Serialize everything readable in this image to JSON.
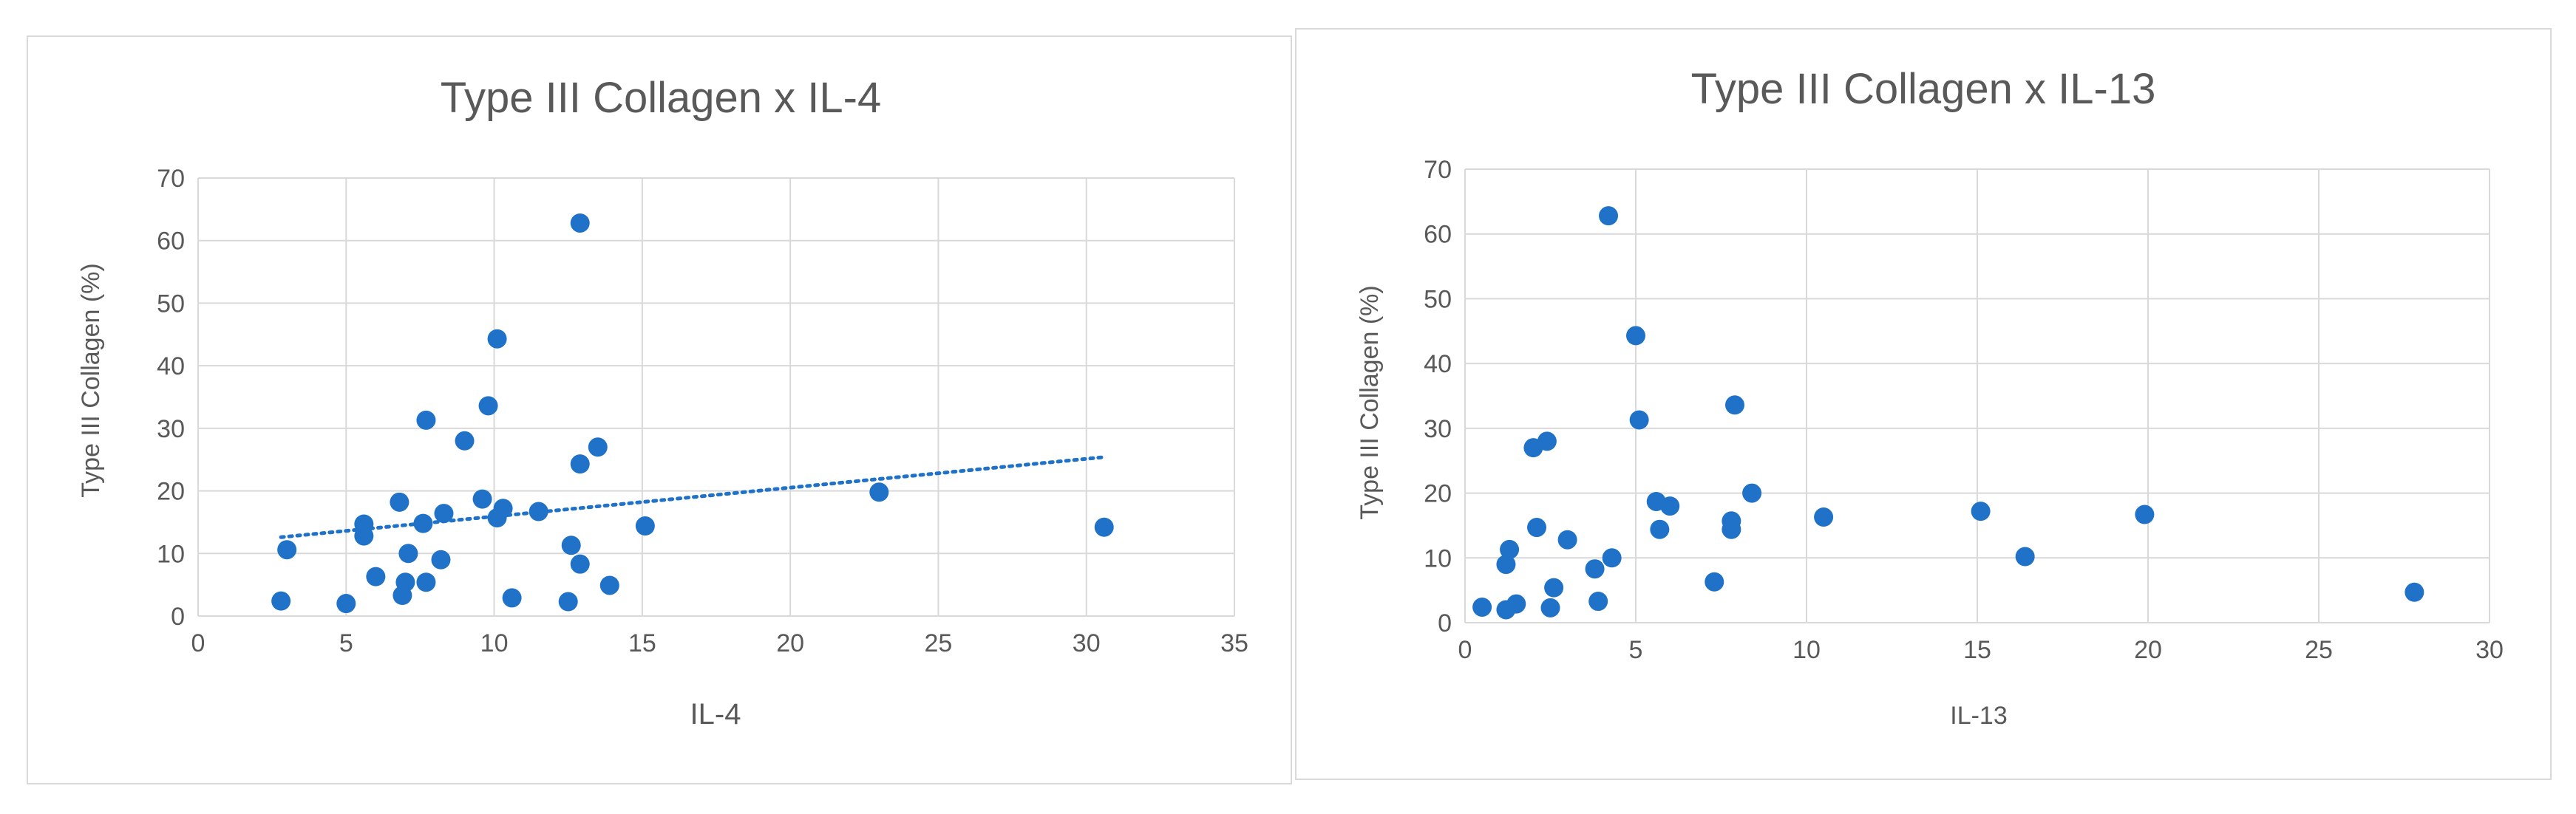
{
  "chart_data": [
    {
      "type": "scatter",
      "title": "Type III Collagen x IL-4",
      "xlabel": "IL-4",
      "ylabel": "Type III Collagen (%)",
      "xlim": [
        0,
        35
      ],
      "ylim": [
        0,
        70
      ],
      "xticks": [
        "0",
        "5",
        "10",
        "15",
        "20",
        "25",
        "30",
        "35"
      ],
      "yticks": [
        "0",
        "10",
        "20",
        "30",
        "40",
        "50",
        "60",
        "70"
      ],
      "grid": true,
      "legend": "none",
      "color": "#1f72c8",
      "trendline": {
        "style": "dotted",
        "x": [
          2.8,
          30.6
        ],
        "y": [
          12.6,
          25.4
        ]
      },
      "points": [
        {
          "x": 2.8,
          "y": 2.4
        },
        {
          "x": 3.0,
          "y": 10.6
        },
        {
          "x": 5.0,
          "y": 2.0
        },
        {
          "x": 5.6,
          "y": 14.7
        },
        {
          "x": 5.6,
          "y": 12.8
        },
        {
          "x": 6.0,
          "y": 6.3
        },
        {
          "x": 6.8,
          "y": 18.2
        },
        {
          "x": 6.9,
          "y": 3.3
        },
        {
          "x": 7.0,
          "y": 5.4
        },
        {
          "x": 7.1,
          "y": 10.0
        },
        {
          "x": 7.6,
          "y": 14.8
        },
        {
          "x": 7.7,
          "y": 5.4
        },
        {
          "x": 7.7,
          "y": 31.3
        },
        {
          "x": 8.2,
          "y": 9.0
        },
        {
          "x": 8.3,
          "y": 16.4
        },
        {
          "x": 9.0,
          "y": 28.0
        },
        {
          "x": 9.6,
          "y": 18.7
        },
        {
          "x": 9.8,
          "y": 33.6
        },
        {
          "x": 10.1,
          "y": 15.7
        },
        {
          "x": 10.1,
          "y": 44.3
        },
        {
          "x": 10.3,
          "y": 17.2
        },
        {
          "x": 10.6,
          "y": 2.9
        },
        {
          "x": 11.5,
          "y": 16.7
        },
        {
          "x": 12.5,
          "y": 2.3
        },
        {
          "x": 12.6,
          "y": 11.3
        },
        {
          "x": 12.9,
          "y": 8.3
        },
        {
          "x": 12.9,
          "y": 24.3
        },
        {
          "x": 12.9,
          "y": 62.8
        },
        {
          "x": 13.5,
          "y": 27.0
        },
        {
          "x": 13.9,
          "y": 4.9
        },
        {
          "x": 15.1,
          "y": 14.4
        },
        {
          "x": 23.0,
          "y": 19.8
        },
        {
          "x": 30.6,
          "y": 14.2
        }
      ]
    },
    {
      "type": "scatter",
      "title": "Type III Collagen x IL-13",
      "xlabel": "IL-13",
      "ylabel": "Type III Collagen (%)",
      "xlim": [
        0,
        30
      ],
      "ylim": [
        0,
        70
      ],
      "xticks": [
        "0",
        "5",
        "10",
        "15",
        "20",
        "25",
        "30"
      ],
      "yticks": [
        "0",
        "10",
        "20",
        "30",
        "40",
        "50",
        "60",
        "70"
      ],
      "grid": true,
      "legend": "none",
      "color": "#1f72c8",
      "points": [
        {
          "x": 0.5,
          "y": 2.4
        },
        {
          "x": 1.2,
          "y": 2.0
        },
        {
          "x": 1.2,
          "y": 9.0
        },
        {
          "x": 1.3,
          "y": 11.3
        },
        {
          "x": 1.5,
          "y": 2.9
        },
        {
          "x": 2.0,
          "y": 27.0
        },
        {
          "x": 2.1,
          "y": 14.7
        },
        {
          "x": 2.4,
          "y": 28.0
        },
        {
          "x": 2.5,
          "y": 2.3
        },
        {
          "x": 2.6,
          "y": 5.4
        },
        {
          "x": 3.0,
          "y": 12.8
        },
        {
          "x": 3.8,
          "y": 8.3
        },
        {
          "x": 3.9,
          "y": 3.3
        },
        {
          "x": 4.2,
          "y": 62.8
        },
        {
          "x": 4.3,
          "y": 10.0
        },
        {
          "x": 5.0,
          "y": 44.3
        },
        {
          "x": 5.1,
          "y": 31.3
        },
        {
          "x": 5.6,
          "y": 18.7
        },
        {
          "x": 5.7,
          "y": 14.4
        },
        {
          "x": 6.0,
          "y": 18.0
        },
        {
          "x": 7.3,
          "y": 6.3
        },
        {
          "x": 7.8,
          "y": 15.7
        },
        {
          "x": 7.8,
          "y": 14.4
        },
        {
          "x": 7.9,
          "y": 33.6
        },
        {
          "x": 8.4,
          "y": 20.0
        },
        {
          "x": 10.5,
          "y": 16.3
        },
        {
          "x": 15.1,
          "y": 17.2
        },
        {
          "x": 16.4,
          "y": 10.2
        },
        {
          "x": 19.9,
          "y": 16.7
        },
        {
          "x": 27.8,
          "y": 4.7
        }
      ]
    }
  ]
}
